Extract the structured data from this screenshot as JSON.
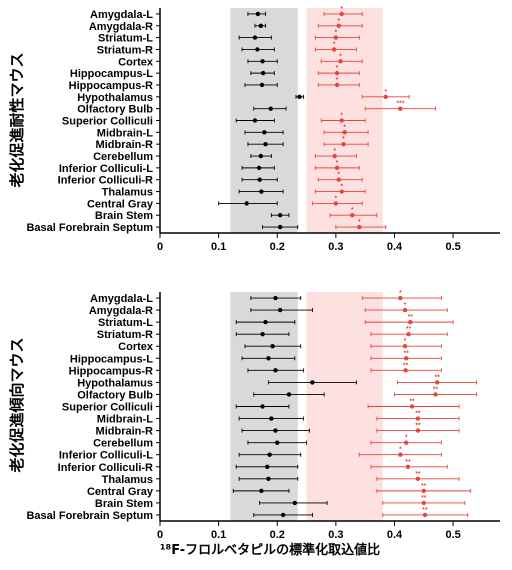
{
  "chart_data": [
    {
      "type": "scatter",
      "ylabel": "老化促進耐性マウス",
      "xlabel": "",
      "xlim": [
        0,
        0.58
      ],
      "xticks": [
        "0",
        "0.1",
        "0.2",
        "0.3",
        "0.4",
        "0.5"
      ],
      "categories": [
        "Amygdala-L",
        "Amygdala-R",
        "Striatum-L",
        "Striatum-R",
        "Cortex",
        "Hippocampus-L",
        "Hippocampus-R",
        "Hypothalamus",
        "Olfactory Bulb",
        "Superior Colliculi",
        "Midbrain-L",
        "Midbrain-R",
        "Cerebellum",
        "Inferior Colliculi-L",
        "Inferior Colliculi-R",
        "Thalamus",
        "Central Gray",
        "Brain Stem",
        "Basal Forebrain Septum"
      ],
      "shaded_ranges": [
        {
          "from": 0.12,
          "to": 0.235,
          "color": "#d9d9d9"
        },
        {
          "from": 0.25,
          "to": 0.38,
          "color": "#fde0e0"
        }
      ],
      "series": [
        {
          "color": "#000000",
          "values": [
            0.167,
            0.172,
            0.162,
            0.166,
            0.175,
            0.176,
            0.174,
            0.238,
            0.189,
            0.162,
            0.178,
            0.18,
            0.172,
            0.169,
            0.17,
            0.173,
            0.148,
            0.205,
            0.205
          ],
          "lower": [
            0.15,
            0.162,
            0.135,
            0.14,
            0.15,
            0.155,
            0.145,
            0.232,
            0.16,
            0.13,
            0.145,
            0.15,
            0.155,
            0.14,
            0.14,
            0.135,
            0.1,
            0.19,
            0.175
          ],
          "upper": [
            0.18,
            0.18,
            0.19,
            0.195,
            0.2,
            0.195,
            0.2,
            0.245,
            0.215,
            0.195,
            0.21,
            0.21,
            0.19,
            0.195,
            0.2,
            0.21,
            0.2,
            0.22,
            0.235
          ]
        },
        {
          "color": "#e8453c",
          "values": [
            0.31,
            0.305,
            0.3,
            0.297,
            0.308,
            0.302,
            0.302,
            0.385,
            0.41,
            0.31,
            0.315,
            0.313,
            0.298,
            0.302,
            0.305,
            0.31,
            0.3,
            0.328,
            0.34
          ],
          "lower": [
            0.28,
            0.27,
            0.265,
            0.265,
            0.275,
            0.27,
            0.27,
            0.345,
            0.35,
            0.275,
            0.28,
            0.28,
            0.265,
            0.265,
            0.27,
            0.265,
            0.26,
            0.29,
            0.3
          ],
          "upper": [
            0.345,
            0.345,
            0.34,
            0.335,
            0.345,
            0.34,
            0.34,
            0.425,
            0.47,
            0.35,
            0.355,
            0.355,
            0.335,
            0.34,
            0.345,
            0.35,
            0.345,
            0.37,
            0.385
          ],
          "marks": [
            "*",
            "*",
            "*",
            "*",
            "*",
            "*",
            "*",
            "*",
            "***",
            "*",
            "*",
            "*",
            "*",
            "*",
            "*",
            "*",
            "*",
            "*",
            "*"
          ]
        }
      ]
    },
    {
      "type": "scatter",
      "ylabel": "老化促進傾向マウス",
      "xlabel": "¹⁸F-フロルベタピルの標準化取込値比",
      "xlim": [
        0,
        0.58
      ],
      "xticks": [
        "0",
        "0.1",
        "0.2",
        "0.3",
        "0.4",
        "0.5"
      ],
      "categories": [
        "Amygdala-L",
        "Amygdala-R",
        "Striatum-L",
        "Striatum-R",
        "Cortex",
        "Hippocampus-L",
        "Hippocampus-R",
        "Hypothalamus",
        "Olfactory Bulb",
        "Superior Colliculi",
        "Midbrain-L",
        "Midbrain-R",
        "Cerebellum",
        "Inferior Colliculi-L",
        "Inferior Colliculi-R",
        "Thalamus",
        "Central Gray",
        "Brain Stem",
        "Basal Forebrain Septum"
      ],
      "shaded_ranges": [
        {
          "from": 0.12,
          "to": 0.235,
          "color": "#d9d9d9"
        },
        {
          "from": 0.25,
          "to": 0.38,
          "color": "#fde0e0"
        }
      ],
      "series": [
        {
          "color": "#000000",
          "values": [
            0.197,
            0.205,
            0.18,
            0.175,
            0.192,
            0.185,
            0.197,
            0.26,
            0.22,
            0.175,
            0.19,
            0.197,
            0.2,
            0.187,
            0.183,
            0.185,
            0.173,
            0.23,
            0.21
          ],
          "lower": [
            0.155,
            0.155,
            0.13,
            0.13,
            0.145,
            0.14,
            0.15,
            0.185,
            0.16,
            0.13,
            0.135,
            0.14,
            0.15,
            0.135,
            0.13,
            0.135,
            0.125,
            0.17,
            0.16
          ],
          "upper": [
            0.24,
            0.26,
            0.23,
            0.22,
            0.24,
            0.23,
            0.245,
            0.335,
            0.28,
            0.22,
            0.245,
            0.255,
            0.25,
            0.24,
            0.235,
            0.235,
            0.22,
            0.285,
            0.26
          ]
        },
        {
          "color": "#e8453c",
          "values": [
            0.41,
            0.418,
            0.427,
            0.424,
            0.418,
            0.42,
            0.419,
            0.473,
            0.47,
            0.43,
            0.44,
            0.44,
            0.42,
            0.41,
            0.423,
            0.44,
            0.45,
            0.45,
            0.452
          ],
          "lower": [
            0.345,
            0.35,
            0.35,
            0.36,
            0.36,
            0.36,
            0.36,
            0.405,
            0.4,
            0.355,
            0.37,
            0.37,
            0.36,
            0.34,
            0.36,
            0.37,
            0.37,
            0.38,
            0.38
          ],
          "upper": [
            0.48,
            0.49,
            0.5,
            0.49,
            0.48,
            0.48,
            0.48,
            0.54,
            0.54,
            0.51,
            0.51,
            0.51,
            0.48,
            0.48,
            0.49,
            0.51,
            0.53,
            0.52,
            0.525
          ],
          "marks": [
            "*",
            "*",
            "**",
            "**",
            "*",
            "**",
            "**",
            "**",
            "**",
            "**",
            "**",
            "**",
            "*",
            "*",
            "**",
            "**",
            "**",
            "**",
            "**"
          ]
        }
      ]
    }
  ]
}
